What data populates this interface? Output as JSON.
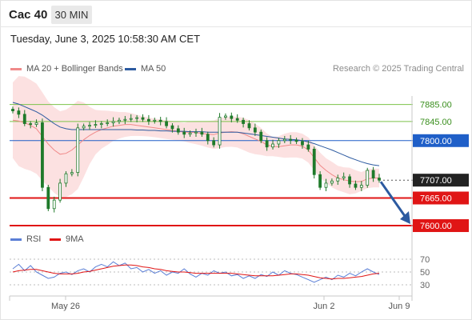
{
  "header": {
    "symbol": "Cac 40",
    "timeframe": "30 MIN",
    "datetime": "Tuesday, June 3, 2025 10:58:30 AM CET"
  },
  "legend": {
    "ma20_label": "MA 20 + Bollinger Bands",
    "ma50_label": "MA 50",
    "credit": "Research © 2025 Trading Central"
  },
  "rsi_legend": {
    "rsi_label": "RSI",
    "ma9_label": "9MA"
  },
  "colors": {
    "ma20": "#f08a8a",
    "bollinger_fill": "#fcdede",
    "ma50": "#2c5aa0",
    "resistance": "#7cc24a",
    "pivot": "#1f5fc8",
    "support": "#e01515",
    "candle": "#1f7a2a",
    "arrow": "#2c5aa0",
    "rsi": "#5b7fd6",
    "rsi_ma9": "#e01515"
  },
  "chart_data": [
    {
      "type": "line",
      "subtype": "candlestick",
      "x_labels": [
        "May 26",
        "Jun 2",
        "Jun 9"
      ],
      "ylim": [
        7585,
        7905
      ],
      "levels": [
        {
          "value": 7885,
          "label": "7885.00",
          "kind": "resistance"
        },
        {
          "value": 7845,
          "label": "7845.00",
          "kind": "resistance"
        },
        {
          "value": 7800,
          "label": "7800.00",
          "kind": "pivot"
        },
        {
          "value": 7707,
          "label": "7707.00",
          "kind": "last"
        },
        {
          "value": 7665,
          "label": "7665.00",
          "kind": "support"
        },
        {
          "value": 7600,
          "label": "7600.00",
          "kind": "support"
        }
      ],
      "last_price": 7707,
      "forecast_target": 7600,
      "series": [
        {
          "name": "Cac 40",
          "close": [
            7870,
            7862,
            7840,
            7838,
            7842,
            7690,
            7640,
            7660,
            7700,
            7722,
            7725,
            7830,
            7834,
            7836,
            7838,
            7840,
            7842,
            7845,
            7848,
            7850,
            7852,
            7854,
            7850,
            7846,
            7848,
            7845,
            7835,
            7828,
            7820,
            7815,
            7818,
            7820,
            7815,
            7800,
            7790,
            7855,
            7858,
            7852,
            7848,
            7840,
            7830,
            7820,
            7800,
            7785,
            7792,
            7800,
            7803,
            7801,
            7798,
            7790,
            7780,
            7720,
            7690,
            7700,
            7705,
            7712,
            7715,
            7698,
            7690,
            7695,
            7730,
            7712,
            7707
          ]
        },
        {
          "name": "MA 20",
          "values": [
            7848,
            7846,
            7842,
            7836,
            7828,
            7810,
            7792,
            7778,
            7768,
            7770,
            7778,
            7790,
            7802,
            7812,
            7820,
            7826,
            7830,
            7834,
            7836,
            7838,
            7838,
            7836,
            7834,
            7832,
            7830,
            7828,
            7826,
            7824,
            7822,
            7820,
            7820,
            7819,
            7817,
            7815,
            7814,
            7818,
            7820,
            7821,
            7820,
            7816,
            7810,
            7804,
            7798,
            7790,
            7786,
            7786,
            7788,
            7790,
            7790,
            7787,
            7778,
            7760,
            7742,
            7730,
            7720,
            7712,
            7708,
            7705,
            7703,
            7704,
            7710,
            7712,
            7712
          ]
        },
        {
          "name": "MA 50",
          "values": [
            7890,
            7886,
            7880,
            7874,
            7868,
            7860,
            7850,
            7840,
            7832,
            7828,
            7826,
            7826,
            7826,
            7826,
            7826,
            7826,
            7826,
            7826,
            7826,
            7826,
            7826,
            7825,
            7825,
            7824,
            7824,
            7823,
            7823,
            7822,
            7822,
            7822,
            7821,
            7821,
            7821,
            7820,
            7820,
            7820,
            7820,
            7820,
            7820,
            7818,
            7816,
            7814,
            7812,
            7810,
            7808,
            7806,
            7804,
            7803,
            7802,
            7800,
            7797,
            7793,
            7788,
            7783,
            7778,
            7772,
            7766,
            7760,
            7755,
            7750,
            7746,
            7743,
            7741
          ]
        }
      ]
    },
    {
      "type": "line",
      "subtype": "rsi",
      "ylim": [
        20,
        80
      ],
      "ticks": [
        70,
        50,
        30
      ],
      "series": [
        {
          "name": "RSI",
          "values": [
            55,
            62,
            52,
            60,
            50,
            45,
            40,
            42,
            48,
            50,
            46,
            52,
            55,
            50,
            58,
            62,
            58,
            66,
            60,
            64,
            55,
            57,
            50,
            54,
            48,
            52,
            45,
            50,
            48,
            55,
            47,
            42,
            48,
            45,
            52,
            48,
            50,
            44,
            46,
            40,
            44,
            40,
            46,
            43,
            50,
            45,
            52,
            48,
            46,
            42,
            38,
            34,
            38,
            42,
            38,
            45,
            42,
            48,
            44,
            50,
            55,
            50,
            46
          ]
        },
        {
          "name": "9MA",
          "values": [
            50,
            52,
            53,
            54,
            54,
            52,
            50,
            48,
            47,
            47,
            47,
            48,
            50,
            51,
            53,
            55,
            57,
            59,
            60,
            61,
            61,
            60,
            58,
            57,
            55,
            54,
            52,
            51,
            50,
            50,
            49,
            48,
            48,
            48,
            48,
            48,
            48,
            48,
            47,
            46,
            45,
            44,
            44,
            44,
            44,
            45,
            46,
            47,
            47,
            46,
            45,
            43,
            41,
            40,
            39,
            40,
            40,
            41,
            42,
            43,
            45,
            47,
            48
          ]
        }
      ]
    }
  ]
}
